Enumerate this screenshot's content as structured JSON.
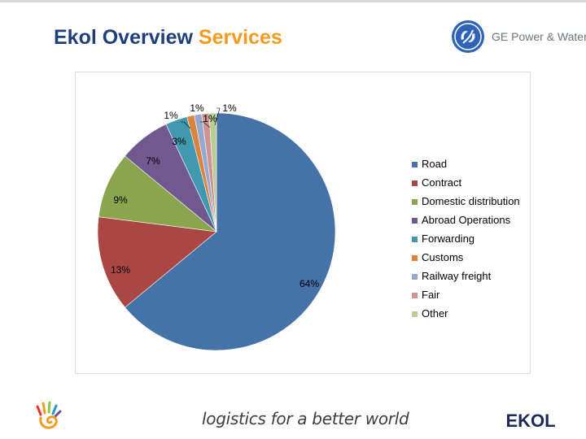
{
  "slide": {
    "title_main": "Ekol Overview",
    "title_accent": "Services",
    "ge_logo_text": "GE Power & Water",
    "tagline": "logistics for a better world",
    "ekol_logo_text": "EKOL"
  },
  "colors": {
    "title": "#1f3f7a",
    "accent": "#f39a1f"
  },
  "chart_data": {
    "type": "pie",
    "title": "",
    "start_angle_deg": 0,
    "direction": "clockwise",
    "legend_position": "right",
    "categories": [
      "Road",
      "Contract",
      "Domestic distribution",
      "Abroad Operations",
      "Forwarding",
      "Customs",
      "Railway freight",
      "Fair",
      "Other"
    ],
    "values": [
      64,
      13,
      9,
      7,
      3,
      1,
      1,
      1,
      1
    ],
    "labels": [
      "64%",
      "13%",
      "9%",
      "7%",
      "3%",
      "1%",
      "1%",
      "1%",
      "1%"
    ],
    "colors": [
      "#4572a7",
      "#aa4643",
      "#89a54e",
      "#71588f",
      "#4198af",
      "#db843d",
      "#93a9cf",
      "#d19392",
      "#b9cd96"
    ]
  }
}
